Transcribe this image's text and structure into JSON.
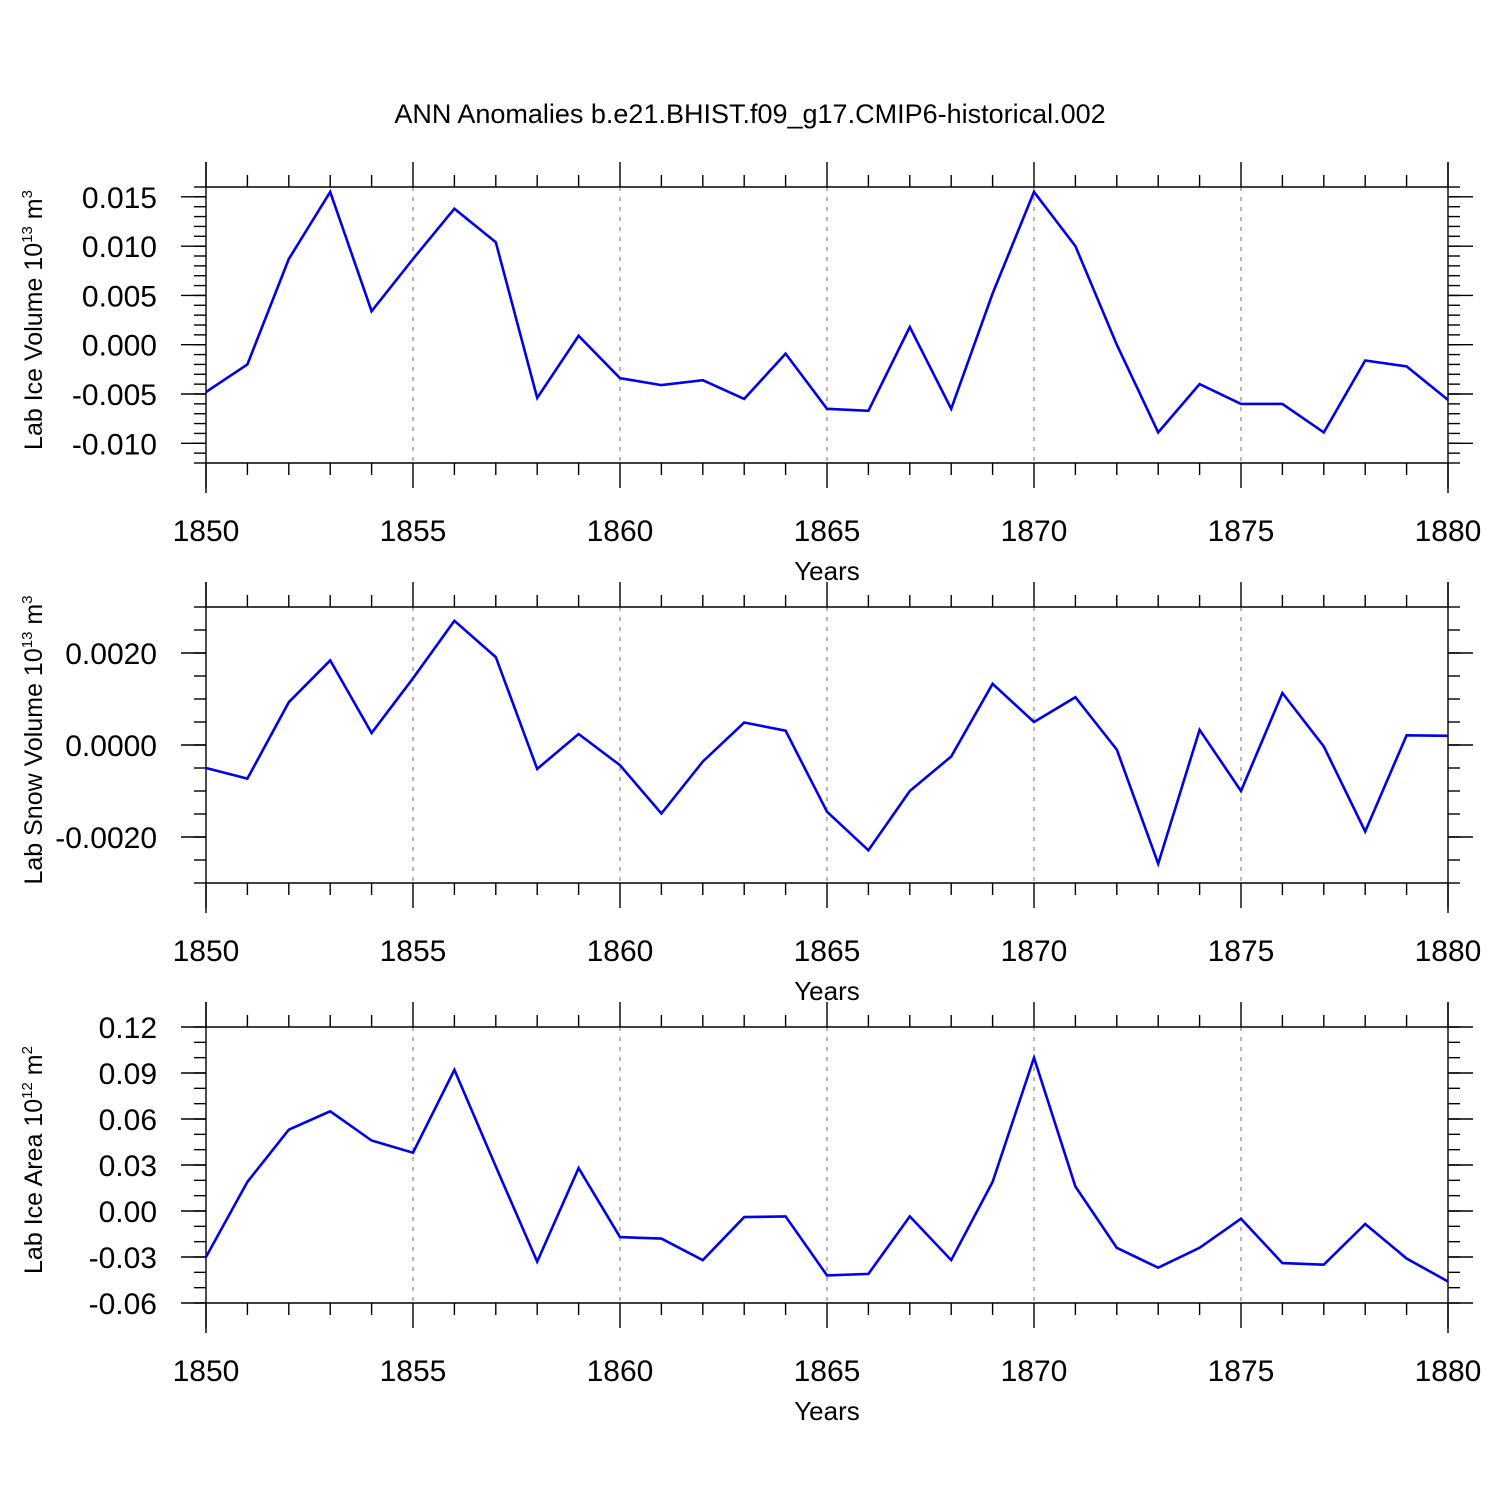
{
  "title": "ANN Anomalies b.e21.BHIST.f09_g17.CMIP6-historical.002",
  "colors": {
    "line": "#0000ee",
    "axis": "#000000",
    "grid": "#888888"
  },
  "chart_data": [
    {
      "type": "line",
      "ylabel": {
        "base": "Lab Ice Volume 10",
        "sup": "13",
        "unit": " m",
        "unit_sup": "3"
      },
      "xlabel": "Years",
      "xlim": [
        1850,
        1880
      ],
      "ylim": [
        -0.012,
        0.016
      ],
      "xticks": [
        "1850",
        "1855",
        "1860",
        "1865",
        "1870",
        "1875",
        "1880"
      ],
      "yticks": [
        "0.015",
        "0.010",
        "0.005",
        "0.000",
        "-0.005",
        "-0.010"
      ],
      "grid": "vertical dashed at major x ticks",
      "x": [
        1850,
        1851,
        1852,
        1853,
        1854,
        1855,
        1856,
        1857,
        1858,
        1859,
        1860,
        1861,
        1862,
        1863,
        1864,
        1865,
        1866,
        1867,
        1868,
        1869,
        1870,
        1871,
        1872,
        1873,
        1874,
        1875,
        1876,
        1877,
        1878,
        1879,
        1880
      ],
      "values": [
        -0.0048,
        -0.002,
        0.0087,
        0.0155,
        0.0034,
        0.0087,
        0.0138,
        0.0104,
        -0.0054,
        0.0009,
        -0.0034,
        -0.0041,
        -0.0036,
        -0.0055,
        -0.0009,
        -0.0065,
        -0.0067,
        0.0018,
        -0.0065,
        0.0052,
        0.0155,
        0.01,
        0.0,
        -0.0089,
        -0.004,
        -0.006,
        -0.006,
        -0.0089,
        -0.0016,
        -0.0022,
        -0.0056
      ]
    },
    {
      "type": "line",
      "ylabel": {
        "base": "Lab Snow Volume 10",
        "sup": "13",
        "unit": " m",
        "unit_sup": "3"
      },
      "xlabel": "Years",
      "xlim": [
        1850,
        1880
      ],
      "ylim": [
        -0.003,
        0.003
      ],
      "xticks": [
        "1850",
        "1855",
        "1860",
        "1865",
        "1870",
        "1875",
        "1880"
      ],
      "yticks": [
        "0.0020",
        "0.0000",
        "-0.0020"
      ],
      "grid": "vertical dashed at major x ticks",
      "x": [
        1850,
        1851,
        1852,
        1853,
        1854,
        1855,
        1856,
        1857,
        1858,
        1859,
        1860,
        1861,
        1862,
        1863,
        1864,
        1865,
        1866,
        1867,
        1868,
        1869,
        1870,
        1871,
        1872,
        1873,
        1874,
        1875,
        1876,
        1877,
        1878,
        1879,
        1880
      ],
      "values": [
        -0.0005,
        -0.00073,
        0.00093,
        0.00184,
        0.00026,
        0.00145,
        0.0027,
        0.00191,
        -0.00052,
        0.00024,
        -0.00044,
        -0.00149,
        -0.00036,
        0.00049,
        0.00031,
        -0.00145,
        -0.00229,
        -0.001,
        -0.00025,
        0.00133,
        0.0005,
        0.00104,
        -0.0001,
        -0.00258,
        0.00033,
        -0.001,
        0.00113,
        -3e-05,
        -0.00188,
        0.00021,
        0.0002
      ]
    },
    {
      "type": "line",
      "ylabel": {
        "base": "Lab Ice Area 10",
        "sup": "12",
        "unit": " m",
        "unit_sup": "2"
      },
      "xlabel": "Years",
      "xlim": [
        1850,
        1880
      ],
      "ylim": [
        -0.06,
        0.12
      ],
      "xticks": [
        "1850",
        "1855",
        "1860",
        "1865",
        "1870",
        "1875",
        "1880"
      ],
      "yticks": [
        "0.12",
        "0.09",
        "0.06",
        "0.03",
        "0.00",
        "-0.03",
        "-0.06"
      ],
      "grid": "vertical dashed at major x ticks",
      "x": [
        1850,
        1851,
        1852,
        1853,
        1854,
        1855,
        1856,
        1857,
        1858,
        1859,
        1860,
        1861,
        1862,
        1863,
        1864,
        1865,
        1866,
        1867,
        1868,
        1869,
        1870,
        1871,
        1872,
        1873,
        1874,
        1875,
        1876,
        1877,
        1878,
        1879,
        1880
      ],
      "values": [
        -0.03,
        0.019,
        0.053,
        0.065,
        0.046,
        0.038,
        0.092,
        0.029,
        -0.033,
        0.028,
        -0.017,
        -0.018,
        -0.032,
        -0.004,
        -0.0035,
        -0.042,
        -0.041,
        -0.0035,
        -0.032,
        0.019,
        0.1,
        0.016,
        -0.024,
        -0.037,
        -0.024,
        -0.005,
        -0.034,
        -0.035,
        -0.0085,
        -0.031,
        -0.046
      ]
    }
  ]
}
